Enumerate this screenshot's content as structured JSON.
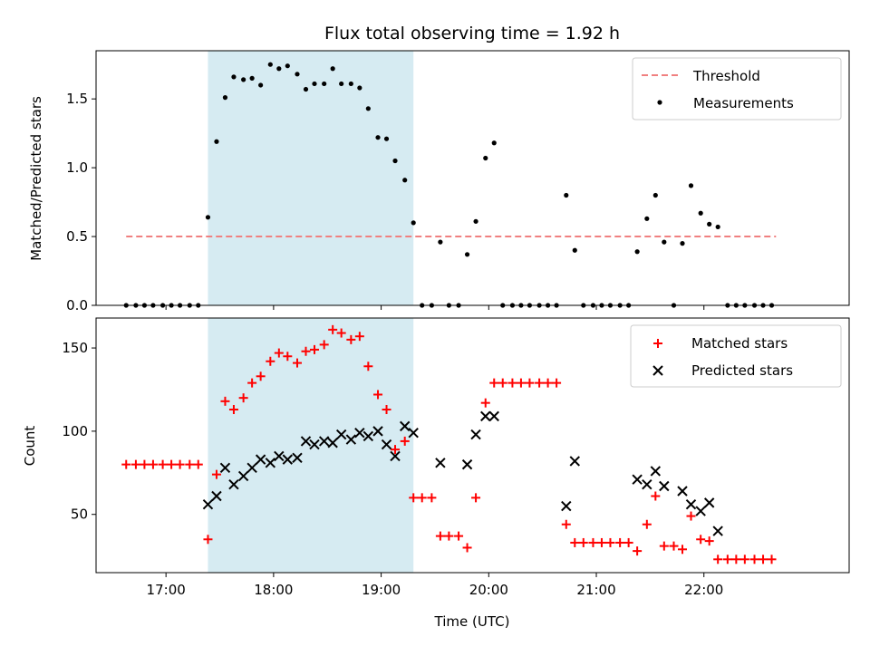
{
  "chart_data": [
    {
      "type": "scatter",
      "title": "Flux total observing time = 1.92 h",
      "xlabel": "",
      "ylabel": "Matched/Predicted stars",
      "x_unit": "time (UTC, decimal hours)",
      "xlim": [
        16.35,
        23.35
      ],
      "ylim": [
        0.0,
        1.85
      ],
      "yticks": [
        {
          "v": 0.0,
          "label": "0.0"
        },
        {
          "v": 0.5,
          "label": "0.5"
        },
        {
          "v": 1.0,
          "label": "1.0"
        },
        {
          "v": 1.5,
          "label": "1.5"
        }
      ],
      "xticks": [
        17,
        18,
        19,
        20,
        21,
        22
      ],
      "grid": false,
      "legend_position": "top-right",
      "shaded_span": {
        "start": 17.39,
        "end": 19.3,
        "color": "#add8e6"
      },
      "threshold": {
        "name": "Threshold",
        "value": 0.5,
        "x_start": 16.63,
        "x_end": 22.67,
        "color": "#f08080"
      },
      "series": [
        {
          "name": "Measurements",
          "color": "#000000",
          "marker": "dot",
          "x": [
            16.63,
            16.72,
            16.8,
            16.88,
            16.97,
            17.05,
            17.13,
            17.22,
            17.3,
            17.39,
            17.47,
            17.55,
            17.63,
            17.72,
            17.8,
            17.88,
            17.97,
            18.05,
            18.13,
            18.22,
            18.3,
            18.38,
            18.47,
            18.55,
            18.63,
            18.72,
            18.8,
            18.88,
            18.97,
            19.05,
            19.13,
            19.22,
            19.3,
            19.38,
            19.47,
            19.55,
            19.63,
            19.72,
            19.8,
            19.88,
            19.97,
            20.05,
            20.13,
            20.22,
            20.3,
            20.38,
            20.47,
            20.55,
            20.63,
            20.72,
            20.8,
            20.88,
            20.97,
            21.05,
            21.13,
            21.22,
            21.3,
            21.38,
            21.47,
            21.55,
            21.63,
            21.72,
            21.8,
            21.88,
            21.97,
            22.05,
            22.13,
            22.22,
            22.3,
            22.38,
            22.47,
            22.55,
            22.63
          ],
          "y": [
            0.0,
            0.0,
            0.0,
            0.0,
            0.0,
            0.0,
            0.0,
            0.0,
            0.0,
            0.64,
            1.19,
            1.51,
            1.66,
            1.64,
            1.65,
            1.6,
            1.75,
            1.72,
            1.74,
            1.68,
            1.57,
            1.61,
            1.61,
            1.72,
            1.61,
            1.61,
            1.58,
            1.43,
            1.22,
            1.21,
            1.05,
            0.91,
            0.6,
            0.0,
            0.0,
            0.46,
            0.0,
            0.0,
            0.37,
            0.61,
            1.07,
            1.18,
            0.0,
            0.0,
            0.0,
            0.0,
            0.0,
            0.0,
            0.0,
            0.8,
            0.4,
            0.0,
            0.0,
            0.0,
            0.0,
            0.0,
            0.0,
            0.39,
            0.63,
            0.8,
            0.46,
            0.0,
            0.45,
            0.87,
            0.67,
            0.59,
            0.57,
            0.0,
            0.0,
            0.0,
            0.0,
            0.0,
            0.0
          ]
        }
      ]
    },
    {
      "type": "scatter",
      "title": "",
      "xlabel": "Time (UTC)",
      "ylabel": "Count",
      "x_unit": "time (UTC, decimal hours)",
      "xlim": [
        16.35,
        23.35
      ],
      "ylim": [
        15,
        168
      ],
      "yticks": [
        {
          "v": 50,
          "label": "50"
        },
        {
          "v": 100,
          "label": "100"
        },
        {
          "v": 150,
          "label": "150"
        }
      ],
      "xticks": [
        {
          "v": 17,
          "label": "17:00"
        },
        {
          "v": 18,
          "label": "18:00"
        },
        {
          "v": 19,
          "label": "19:00"
        },
        {
          "v": 20,
          "label": "20:00"
        },
        {
          "v": 21,
          "label": "21:00"
        },
        {
          "v": 22,
          "label": "22:00"
        }
      ],
      "grid": false,
      "legend_position": "top-right",
      "shaded_span": {
        "start": 17.39,
        "end": 19.3,
        "color": "#add8e6"
      },
      "series": [
        {
          "name": "Matched stars",
          "color": "#ff0000",
          "marker": "plus",
          "x": [
            16.63,
            16.72,
            16.8,
            16.88,
            16.97,
            17.05,
            17.13,
            17.22,
            17.3,
            17.39,
            17.47,
            17.55,
            17.63,
            17.72,
            17.8,
            17.88,
            17.97,
            18.05,
            18.13,
            18.22,
            18.3,
            18.38,
            18.47,
            18.55,
            18.63,
            18.72,
            18.8,
            18.88,
            18.97,
            19.05,
            19.13,
            19.22,
            19.3,
            19.38,
            19.47,
            19.55,
            19.63,
            19.72,
            19.8,
            19.88,
            19.97,
            20.05,
            20.13,
            20.22,
            20.3,
            20.38,
            20.47,
            20.55,
            20.63,
            20.72,
            20.8,
            20.88,
            20.97,
            21.05,
            21.13,
            21.22,
            21.3,
            21.38,
            21.47,
            21.55,
            21.63,
            21.72,
            21.8,
            21.88,
            21.97,
            22.05,
            22.13,
            22.22,
            22.3,
            22.38,
            22.47,
            22.55,
            22.63
          ],
          "y": [
            80,
            80,
            80,
            80,
            80,
            80,
            80,
            80,
            80,
            35,
            74,
            118,
            113,
            120,
            129,
            133,
            142,
            147,
            145,
            141,
            148,
            149,
            152,
            161,
            159,
            155,
            157,
            139,
            122,
            113,
            89,
            94,
            60,
            60,
            60,
            37,
            37,
            37,
            30,
            60,
            117,
            129,
            129,
            129,
            129,
            129,
            129,
            129,
            129,
            44,
            33,
            33,
            33,
            33,
            33,
            33,
            33,
            28,
            44,
            61,
            31,
            31,
            29,
            49,
            35,
            34,
            23,
            23,
            23,
            23,
            23,
            23,
            23
          ]
        },
        {
          "name": "Predicted stars",
          "color": "#000000",
          "marker": "cross",
          "x": [
            17.39,
            17.47,
            17.55,
            17.63,
            17.72,
            17.8,
            17.88,
            17.97,
            18.05,
            18.13,
            18.22,
            18.3,
            18.38,
            18.47,
            18.55,
            18.63,
            18.72,
            18.8,
            18.88,
            18.97,
            19.05,
            19.13,
            19.22,
            19.3,
            19.55,
            19.8,
            19.88,
            19.97,
            20.05,
            20.72,
            20.8,
            21.38,
            21.47,
            21.55,
            21.63,
            21.8,
            21.88,
            21.97,
            22.05,
            22.13
          ],
          "y": [
            56,
            61,
            78,
            68,
            73,
            78,
            83,
            81,
            85,
            83,
            84,
            94,
            92,
            94,
            93,
            98,
            95,
            99,
            97,
            100,
            92,
            85,
            103,
            99,
            81,
            80,
            98,
            109,
            109,
            55,
            82,
            71,
            68,
            76,
            67,
            64,
            56,
            52,
            57,
            40
          ]
        }
      ]
    }
  ]
}
